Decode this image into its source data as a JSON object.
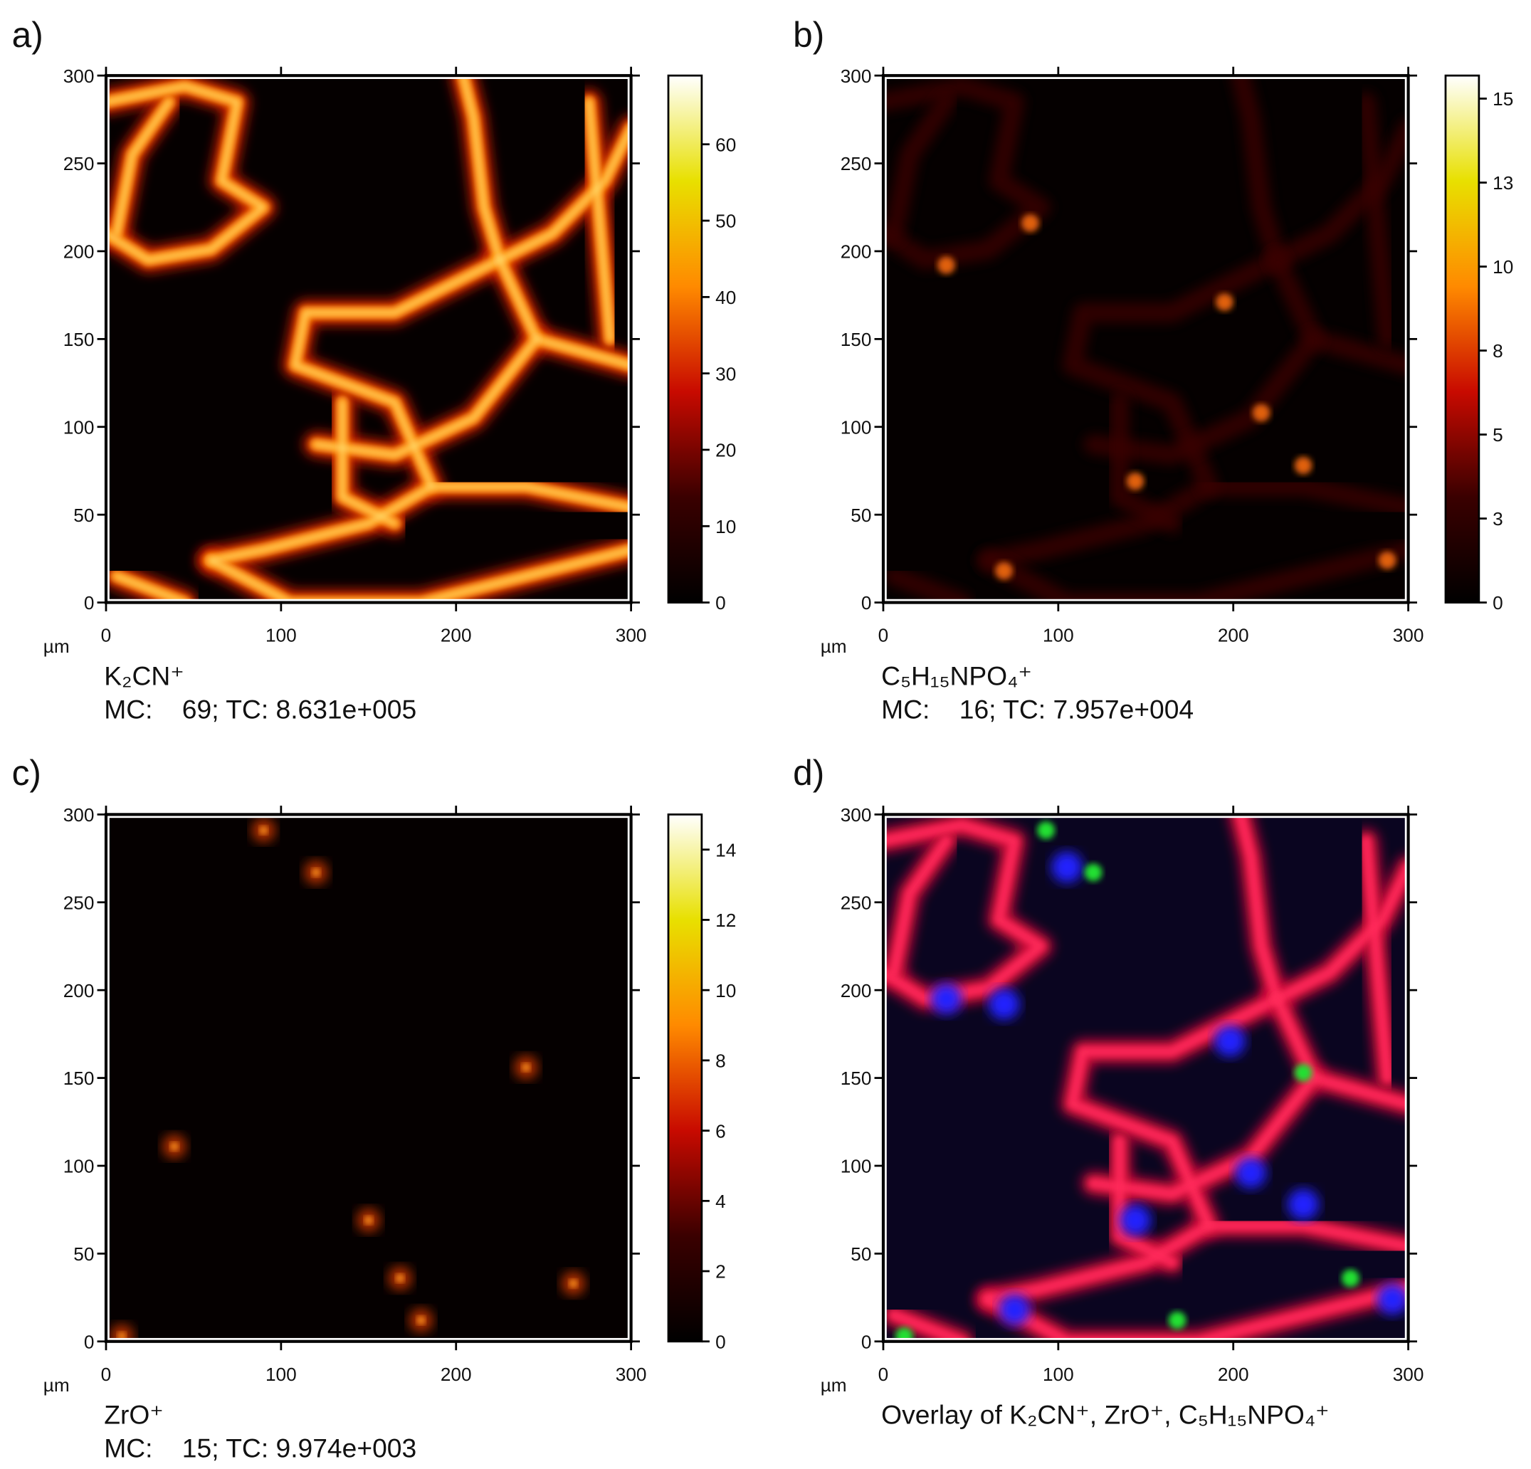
{
  "chart_data": [
    {
      "type": "image",
      "label": "a)",
      "xlim": [
        0,
        300
      ],
      "ylim": [
        0,
        300
      ],
      "xticks": [
        0,
        100,
        200,
        300
      ],
      "yticks": [
        0,
        50,
        100,
        150,
        200,
        250,
        300
      ],
      "x_unit": "µm",
      "caption": [
        "K₂CN⁺",
        "MC:    69; TC: 8.631e+005"
      ],
      "colorbar": {
        "lim": [
          0,
          69
        ],
        "ticks": [
          0,
          10,
          20,
          30,
          40,
          50,
          60
        ]
      }
    },
    {
      "type": "image",
      "label": "b)",
      "xlim": [
        0,
        300
      ],
      "ylim": [
        0,
        300
      ],
      "xticks": [
        0,
        100,
        200,
        300
      ],
      "yticks": [
        0,
        50,
        100,
        150,
        200,
        250,
        300
      ],
      "x_unit": "µm",
      "caption": [
        "C₅H₁₅NPO₄⁺",
        "MC:    16; TC: 7.957e+004"
      ],
      "colorbar": {
        "lim": [
          0,
          16
        ],
        "ticks": [
          0,
          {
            "value": 2.55,
            "label": "3"
          },
          {
            "value": 5.1,
            "label": "5"
          },
          {
            "value": 7.65,
            "label": "8"
          },
          {
            "value": 10.2,
            "label": "10"
          },
          {
            "value": 12.75,
            "label": "13"
          },
          {
            "value": 15.3,
            "label": "15"
          }
        ]
      }
    },
    {
      "type": "image",
      "label": "c)",
      "xlim": [
        0,
        300
      ],
      "ylim": [
        0,
        300
      ],
      "xticks": [
        0,
        100,
        200,
        300
      ],
      "yticks": [
        0,
        50,
        100,
        150,
        200,
        250,
        300
      ],
      "x_unit": "µm",
      "caption": [
        "ZrO⁺",
        "MC:    15; TC: 9.974e+003"
      ],
      "colorbar": {
        "lim": [
          0,
          15
        ],
        "ticks": [
          0,
          2,
          4,
          6,
          8,
          10,
          12,
          14
        ]
      }
    },
    {
      "type": "overlay",
      "label": "d)",
      "xlim": [
        0,
        300
      ],
      "ylim": [
        0,
        300
      ],
      "xticks": [
        0,
        100,
        200,
        300
      ],
      "yticks": [
        0,
        50,
        100,
        150,
        200,
        250,
        300
      ],
      "x_unit": "µm",
      "caption": [
        "Overlay of K₂CN⁺, ZrO⁺, C₅H₁₅NPO₄⁺"
      ]
    }
  ]
}
